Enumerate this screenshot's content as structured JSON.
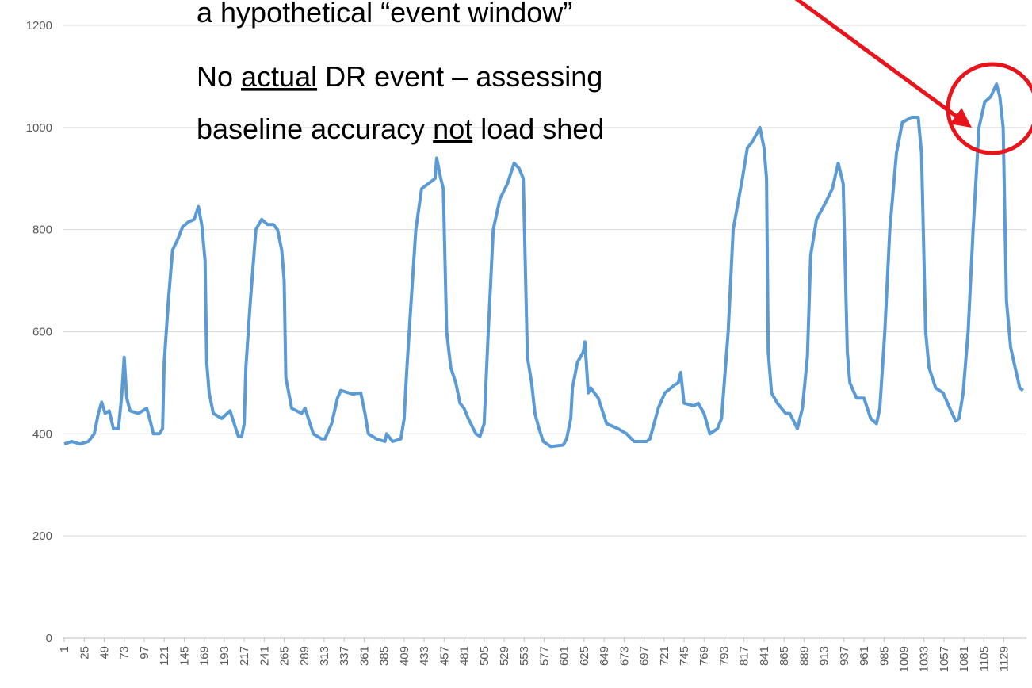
{
  "chart_data": {
    "type": "line",
    "annotations": [
      [
        "a hypothetical “event window”"
      ],
      [
        "No ",
        "actual",
        " DR event – assessing"
      ],
      [
        "baseline accuracy ",
        "not",
        " load shed"
      ]
    ],
    "x": [
      1,
      10,
      20,
      30,
      37,
      42,
      46,
      50,
      55,
      60,
      66,
      70,
      73,
      76,
      80,
      90,
      100,
      105,
      108,
      115,
      119,
      121,
      126,
      131,
      137,
      143,
      150,
      157,
      162,
      166,
      170,
      172,
      175,
      180,
      190,
      200,
      205,
      210,
      214,
      217,
      219,
      224,
      231,
      238,
      245,
      252,
      257,
      262,
      265,
      267,
      274,
      286,
      290,
      300,
      310,
      314,
      322,
      329,
      333,
      347,
      357,
      362,
      366,
      376,
      386,
      388,
      395,
      405,
      409,
      412,
      417,
      423,
      430,
      438,
      446,
      448,
      453,
      456,
      460,
      465,
      471,
      476,
      481,
      486,
      495,
      500,
      505,
      510,
      516,
      524,
      533,
      541,
      547,
      552,
      557,
      562,
      566,
      571,
      576,
      585,
      600,
      604,
      609,
      611,
      617,
      624,
      626,
      630,
      633,
      642,
      652,
      666,
      676,
      685,
      700,
      704,
      714,
      722,
      733,
      738,
      741,
      745,
      757,
      762,
      769,
      776,
      785,
      790,
      798,
      804,
      815,
      821,
      826,
      833,
      836,
      841,
      844,
      846,
      850,
      857,
      867,
      872,
      881,
      887,
      893,
      897,
      904,
      914,
      923,
      930,
      936,
      941,
      944,
      952,
      961,
      969,
      976,
      980,
      986,
      992,
      1000,
      1007,
      1018,
      1026,
      1030,
      1035,
      1039,
      1047,
      1056,
      1064,
      1071,
      1075,
      1080,
      1086,
      1092,
      1099,
      1106,
      1113,
      1120,
      1124,
      1128,
      1132,
      1137,
      1141,
      1148,
      1152
    ],
    "series": [
      {
        "color": "#5b9bd5",
        "values": [
          380,
          385,
          380,
          385,
          400,
          440,
          462,
          440,
          445,
          410,
          410,
          475,
          550,
          470,
          445,
          440,
          450,
          420,
          400,
          400,
          410,
          540,
          660,
          760,
          780,
          805,
          815,
          820,
          845,
          810,
          740,
          540,
          480,
          440,
          430,
          445,
          420,
          395,
          395,
          420,
          530,
          650,
          800,
          820,
          810,
          810,
          800,
          760,
          700,
          510,
          450,
          440,
          450,
          400,
          390,
          390,
          420,
          470,
          485,
          478,
          480,
          440,
          400,
          390,
          385,
          400,
          385,
          390,
          430,
          520,
          650,
          800,
          880,
          890,
          900,
          940,
          900,
          880,
          600,
          530,
          500,
          460,
          450,
          430,
          400,
          395,
          420,
          600,
          800,
          860,
          890,
          930,
          920,
          900,
          550,
          500,
          440,
          410,
          385,
          375,
          378,
          390,
          430,
          490,
          540,
          560,
          580,
          480,
          490,
          470,
          420,
          410,
          400,
          385,
          385,
          390,
          450,
          480,
          495,
          500,
          520,
          460,
          455,
          460,
          440,
          400,
          410,
          430,
          600,
          800,
          900,
          960,
          970,
          990,
          1000,
          960,
          900,
          560,
          480,
          460,
          440,
          440,
          410,
          450,
          550,
          750,
          820,
          850,
          880,
          930,
          890,
          560,
          500,
          470,
          470,
          430,
          420,
          450,
          600,
          800,
          950,
          1010,
          1020,
          1020,
          950,
          600,
          530,
          490,
          480,
          450,
          425,
          430,
          480,
          600,
          800,
          1000,
          1050,
          1060,
          1085,
          1060,
          1000,
          660,
          570,
          540,
          490,
          485
        ]
      }
    ],
    "xlim": [
      0,
      1156
    ],
    "xticks": [
      1,
      25,
      49,
      73,
      97,
      121,
      145,
      169,
      193,
      217,
      241,
      265,
      289,
      313,
      337,
      361,
      385,
      409,
      433,
      457,
      481,
      505,
      529,
      553,
      577,
      601,
      625,
      649,
      673,
      697,
      721,
      745,
      769,
      793,
      817,
      841,
      865,
      889,
      913,
      937,
      961,
      985,
      1009,
      1033,
      1057,
      1081,
      1105,
      1129
    ],
    "ylim": [
      0,
      1200
    ],
    "yticks": [
      0,
      200,
      400,
      600,
      800,
      1000,
      1200
    ],
    "grid": true
  }
}
